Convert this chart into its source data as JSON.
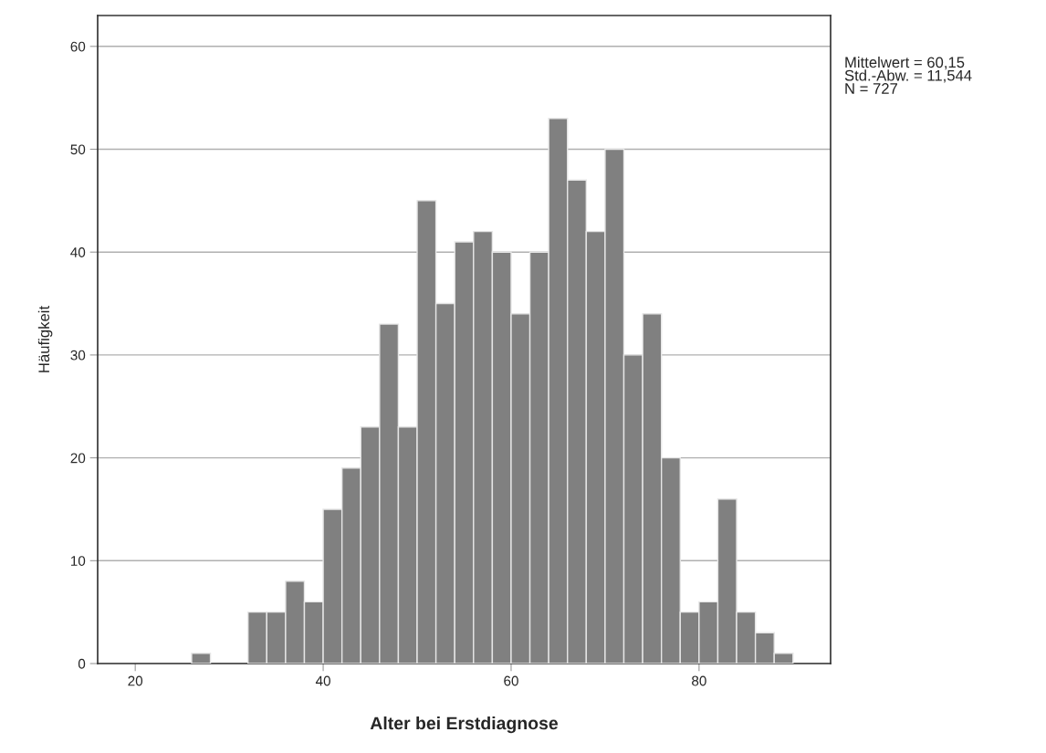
{
  "chart_data": {
    "type": "histogram",
    "xlabel": "Alter bei Erstdiagnose",
    "ylabel": "Häufigkeit",
    "bins": [
      26,
      28,
      30,
      32,
      34,
      36,
      38,
      40,
      42,
      44,
      46,
      48,
      50,
      52,
      54,
      56,
      58,
      60,
      62,
      64,
      66,
      68,
      70,
      72,
      74,
      76,
      78,
      80,
      82,
      84,
      86,
      88,
      90
    ],
    "values": [
      1,
      0,
      0,
      5,
      5,
      8,
      6,
      15,
      19,
      23,
      33,
      23,
      45,
      35,
      41,
      42,
      40,
      34,
      40,
      53,
      47,
      42,
      50,
      30,
      34,
      20,
      5,
      6,
      16,
      5,
      3,
      1
    ],
    "color": "#808080",
    "xlim": [
      16,
      94
    ],
    "xticks": [
      20,
      40,
      60,
      80
    ],
    "ylim": [
      0,
      63
    ],
    "yticks": [
      0,
      10,
      20,
      30,
      40,
      50,
      60
    ],
    "grid": "y",
    "annotations": [
      "Mittelwert = 60,15\nStd.-Abw. = 11,544\nN = 727"
    ]
  }
}
